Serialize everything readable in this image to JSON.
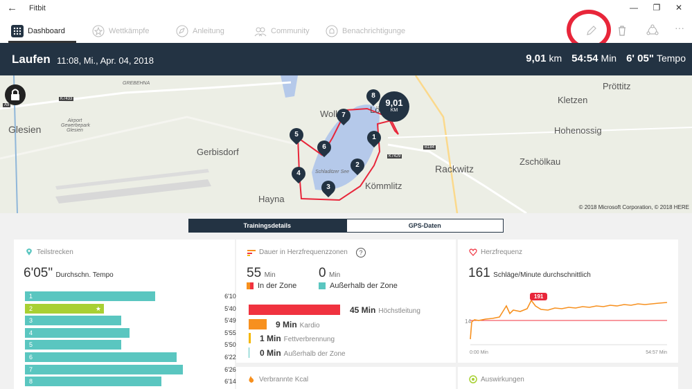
{
  "window": {
    "back_glyph": "←",
    "app_title": "Fitbit",
    "minimize_glyph": "—",
    "maximize_glyph": "❐",
    "close_glyph": "✕"
  },
  "nav": {
    "tabs": [
      {
        "label": "Dashboard",
        "icon": "dashboard-grid-icon"
      },
      {
        "label": "Wettkämpfe",
        "icon": "star-icon"
      },
      {
        "label": "Anleitung",
        "icon": "compass-icon"
      },
      {
        "label": "Community",
        "icon": "people-icon"
      },
      {
        "label": "Benachrichtigunge",
        "icon": "bell-icon"
      }
    ],
    "tools": [
      "pencil-icon",
      "trash-icon",
      "share-icon",
      "more-icon"
    ],
    "more_glyph": "···"
  },
  "header": {
    "title": "Laufen",
    "datetime": "11:08, Mi., Apr. 04, 2018",
    "distance_value": "9,01",
    "distance_unit": "km",
    "duration_value": "54:54",
    "duration_unit": "Min",
    "pace_value": "6' 05\"",
    "pace_unit": "Tempo"
  },
  "map": {
    "places": [
      "Glesien",
      "Gerbisdorf",
      "Hayna",
      "Kömmlitz",
      "Rackwitz",
      "Zschölkau",
      "Hohenossig",
      "Kletzen",
      "Pröttitz",
      "Wolk",
      "Lö"
    ],
    "small_labels": [
      "GREBEHNA",
      "Airport Gewerbepark Glesien",
      "Schladitzer See"
    ],
    "road_tags": [
      "K7433",
      "A9",
      "K7429",
      "B184"
    ],
    "markers": [
      "1",
      "2",
      "3",
      "4",
      "5",
      "6",
      "7",
      "8"
    ],
    "end_badge_value": "9,01",
    "end_badge_unit": "KM",
    "copyright": "© 2018 Microsoft Corporation, © 2018 HERE",
    "colors": {
      "water": "#b5c9ea",
      "route": "#e8263a",
      "marker": "#233343"
    }
  },
  "tabs": {
    "active": "Trainingsdetails",
    "inactive": "GPS-Daten"
  },
  "splits": {
    "title": "Teilstrecken",
    "avg_value": "6'05\"",
    "avg_label": "Durchschn. Tempo",
    "best_glyph": "★",
    "rows": [
      {
        "label": "1",
        "time": "6'10\"",
        "fraction": 0.61,
        "best": false
      },
      {
        "label": "2",
        "time": "5'40\"",
        "fraction": 0.37,
        "best": true
      },
      {
        "label": "3",
        "time": "5'49\"",
        "fraction": 0.45,
        "best": false
      },
      {
        "label": "4",
        "time": "5'55\"",
        "fraction": 0.49,
        "best": false
      },
      {
        "label": "5",
        "time": "5'50\"",
        "fraction": 0.45,
        "best": false
      },
      {
        "label": "6",
        "time": "6'22\"",
        "fraction": 0.71,
        "best": false
      },
      {
        "label": "7",
        "time": "6'26\"",
        "fraction": 0.74,
        "best": false
      },
      {
        "label": "8",
        "time": "6'14\"",
        "fraction": 0.64,
        "best": false
      }
    ]
  },
  "zones": {
    "title": "Dauer in Herzfrequenzzonen",
    "help_glyph": "?",
    "in_zone_value": "55",
    "in_zone_unit": "Min",
    "in_zone_label": "In der Zone",
    "out_zone_value": "0",
    "out_zone_unit": "Min",
    "out_zone_label": "Außerhalb der Zone",
    "rows": [
      {
        "value": "45 Min",
        "label": "Höchstleitung",
        "color": "#f0323f",
        "minutes": 45
      },
      {
        "value": "9 Min",
        "label": "Kardio",
        "color": "#f7901e",
        "minutes": 9
      },
      {
        "value": "1 Min",
        "label": "Fettverbrennung",
        "color": "#f5b700",
        "minutes": 1
      },
      {
        "value": "0 Min",
        "label": "Außerhalb der Zone",
        "color": "#5ac6c0",
        "minutes": 0
      }
    ]
  },
  "heartrate": {
    "title": "Herzfrequenz",
    "avg_value": "161",
    "avg_label": "Schläge/Minute durchschnittlich",
    "peak_label": "191",
    "y_tick": "14",
    "x_start": "0:00 Min",
    "x_end": "54:57 Min",
    "color": "#f7901e"
  },
  "cards_bottom": {
    "kcal_title": "Verbrannte Kcal",
    "effects_title": "Auswirkungen"
  }
}
